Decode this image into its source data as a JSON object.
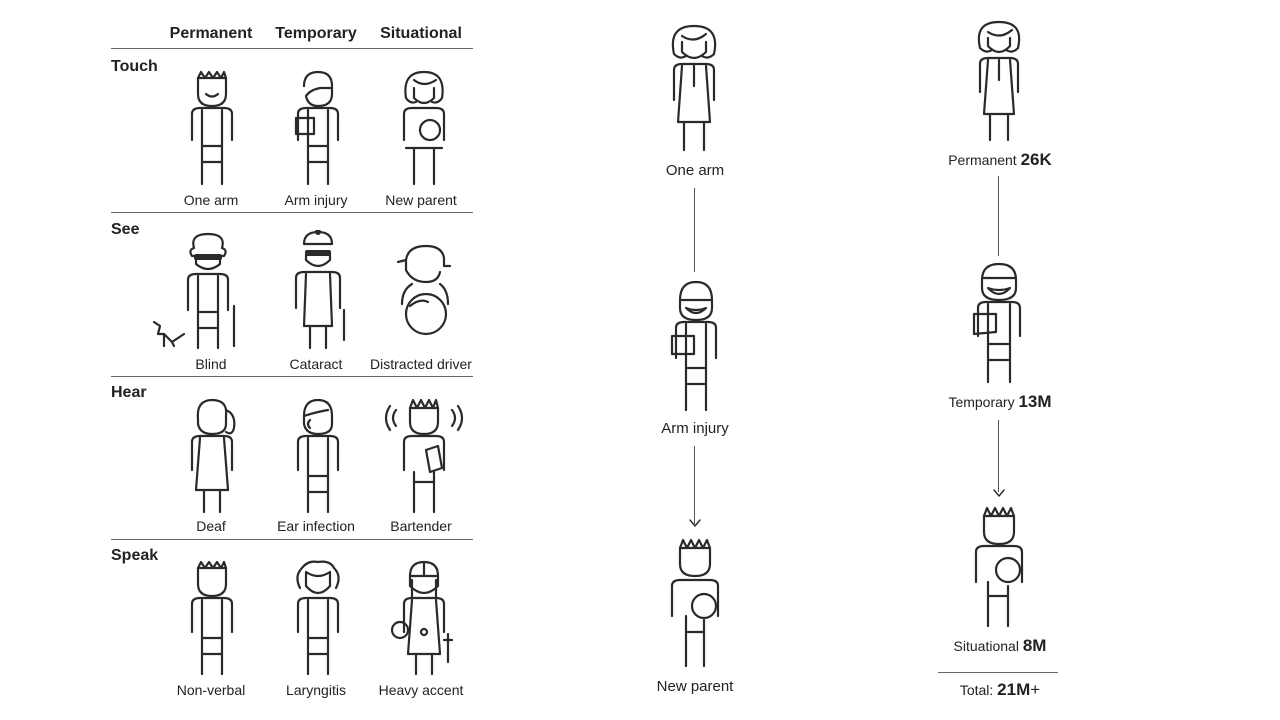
{
  "matrix": {
    "columns": [
      "Permanent",
      "Temporary",
      "Situational"
    ],
    "rows": [
      {
        "label": "Touch",
        "items": [
          "One arm",
          "Arm injury",
          "New parent"
        ]
      },
      {
        "label": "See",
        "items": [
          "Blind",
          "Cataract",
          "Distracted driver"
        ]
      },
      {
        "label": "Hear",
        "items": [
          "Deaf",
          "Ear infection",
          "Bartender"
        ]
      },
      {
        "label": "Speak",
        "items": [
          "Non-verbal",
          "Laryngitis",
          "Heavy accent"
        ]
      }
    ]
  },
  "spectrum": {
    "steps": [
      "One arm",
      "Arm injury",
      "New parent"
    ]
  },
  "counts": {
    "permanent_label": "Permanent",
    "permanent_value": "26K",
    "temporary_label": "Temporary",
    "temporary_value": "13M",
    "situational_label": "Situational",
    "situational_value": "8M",
    "total_label": "Total:",
    "total_value": "21M",
    "total_suffix": "+"
  },
  "colors": {
    "line": "#2a2a2a",
    "rule": "#666666"
  }
}
